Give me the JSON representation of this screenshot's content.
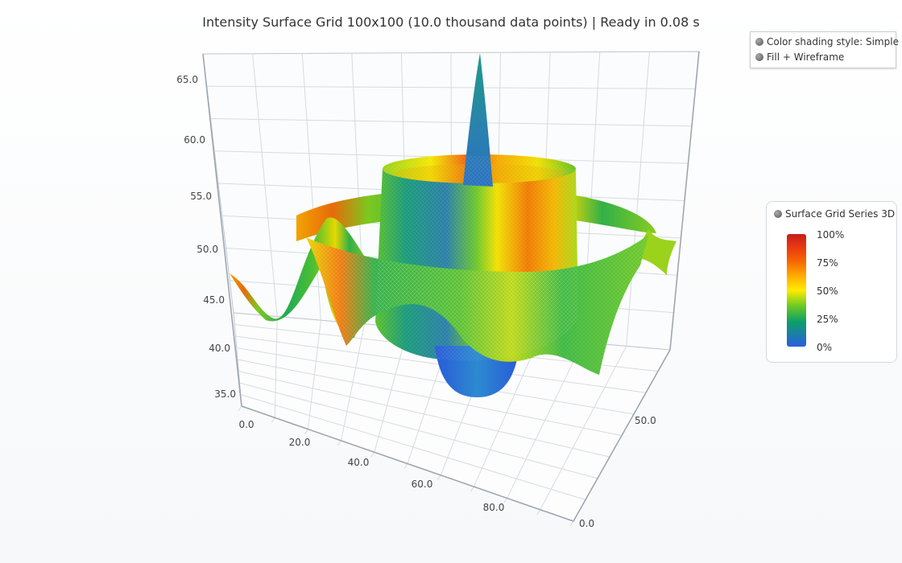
{
  "title": "Intensity Surface Grid 100x100 (10.0 thousand data points) | Ready in 0.08 s",
  "options_legend": {
    "items": [
      "Color shading style: Simple",
      "Fill + Wireframe"
    ]
  },
  "series_legend": {
    "name": "Surface Grid Series 3D",
    "scale_labels": [
      "100%",
      "75%",
      "50%",
      "25%",
      "0%"
    ],
    "colors": [
      "#2a5fe0",
      "#0d9e6a",
      "#6ac924",
      "#ffeb00",
      "#ffb000",
      "#f76a00",
      "#c41f18"
    ]
  },
  "chart_data": {
    "type": "surface3d",
    "title": "Intensity Surface Grid 100x100 (10.0 thousand data points) | Ready in 0.08 s",
    "grid_size": [
      100,
      100
    ],
    "point_count": 10000,
    "x_ticks": [
      "0.0",
      "20.0",
      "40.0",
      "60.0",
      "80.0"
    ],
    "y_ticks": [
      "35.0",
      "40.0",
      "45.0",
      "50.0",
      "55.0",
      "60.0",
      "65.0"
    ],
    "z_ticks": [
      "0.0",
      "50.0"
    ],
    "xlim": [
      0,
      100
    ],
    "ylim": [
      34,
      67
    ],
    "zlim": [
      0,
      100
    ],
    "grid": true,
    "shading": "Simple",
    "style": "Fill + Wireframe"
  }
}
